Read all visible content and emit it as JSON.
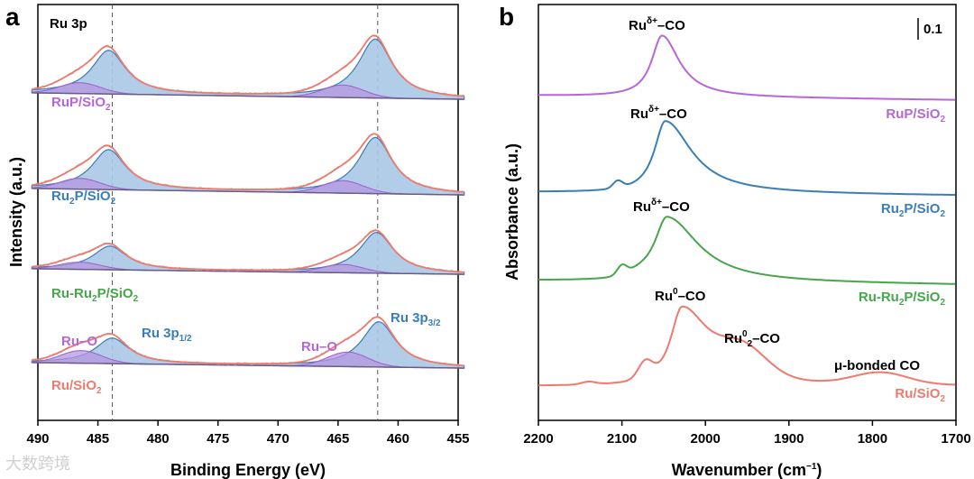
{
  "chart_data": [
    {
      "panel": "a",
      "type": "line",
      "title": "Ru 3p",
      "xlabel": "Binding Energy (eV)",
      "ylabel": "Intensity (a.u.)",
      "xlim": [
        490,
        455
      ],
      "x_ticks": [
        490,
        485,
        480,
        475,
        470,
        465,
        460,
        455
      ],
      "reference_lines": [
        483.8,
        461.7
      ],
      "series": [
        {
          "name": "RuP/SiO2",
          "peaks": {
            "Ru 3p1/2": 484.1,
            "Ru 3p3/2": 461.9,
            "Ru-O_1/2": 486.5,
            "Ru-O_3/2": 464.6
          }
        },
        {
          "name": "Ru2P/SiO2",
          "peaks": {
            "Ru 3p1/2": 484.1,
            "Ru 3p3/2": 461.9,
            "Ru-O_1/2": 486.5,
            "Ru-O_3/2": 464.6
          }
        },
        {
          "name": "Ru-Ru2P/SiO2",
          "peaks": {
            "Ru 3p1/2": 484.0,
            "Ru 3p3/2": 461.8,
            "Ru-O_1/2": 486.5,
            "Ru-O_3/2": 464.6
          }
        },
        {
          "name": "Ru/SiO2",
          "peaks": {
            "Ru 3p1/2": 483.8,
            "Ru 3p3/2": 461.6,
            "Ru-O_1/2": 486.4,
            "Ru-O_3/2": 464.2
          }
        }
      ],
      "annotations": [
        "Ru–O",
        "Ru 3p1/2",
        "Ru–O",
        "Ru 3p3/2"
      ]
    },
    {
      "panel": "b",
      "type": "line",
      "xlabel": "Wavenumber (cm−1)",
      "ylabel": "Absorbance (a.u.)",
      "xlim": [
        2200,
        1700
      ],
      "x_ticks": [
        2200,
        2100,
        2000,
        1900,
        1800,
        1700
      ],
      "scale_bar": "0.1",
      "series": [
        {
          "name": "RuP/SiO2",
          "peak_cm": 2052,
          "annotation": "Ruδ+–CO"
        },
        {
          "name": "Ru2P/SiO2",
          "peak_cm": 2048,
          "annotation": "Ruδ+–CO"
        },
        {
          "name": "Ru-Ru2P/SiO2",
          "peak_cm": 2046,
          "annotation": "Ruδ+–CO"
        },
        {
          "name": "Ru/SiO2",
          "peak_cm": 2028,
          "annotation": "Ru0–CO",
          "extra": [
            "Ru02–CO",
            "μ-bonded CO"
          ]
        }
      ]
    }
  ],
  "colors": {
    "purple": "#b766d8",
    "blue": "#3a7eb5",
    "green": "#47a64b",
    "red": "#ee7a6e",
    "fill_blue": "#a9c8e6",
    "fill_purple": "#b695e0"
  },
  "watermark": "大数跨境"
}
